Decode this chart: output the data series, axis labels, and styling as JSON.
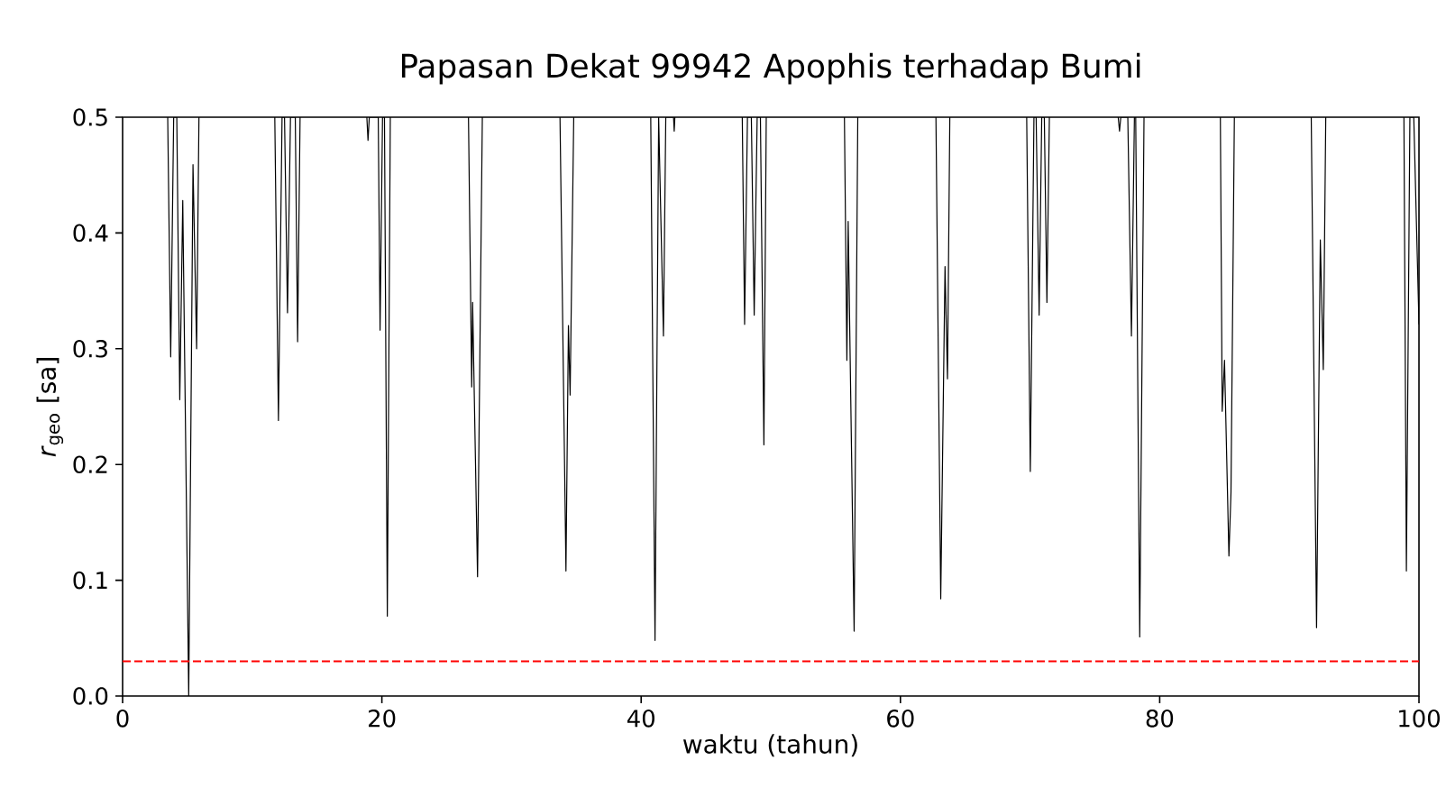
{
  "chart_data": {
    "type": "line",
    "title": "Papasan Dekat 99942 Apophis terhadap Bumi",
    "xlabel": "waktu (tahun)",
    "ylabel": "*r*$_{geo}$ [sa]",
    "xlim": [
      0,
      100
    ],
    "xticks": [
      0,
      20,
      40,
      60,
      80,
      100
    ],
    "ylim": [
      0,
      0.5
    ],
    "yticks": [
      {
        "value": 0,
        "label": "0.0"
      },
      {
        "value": 0.1,
        "label": "0.1"
      },
      {
        "value": 0.2,
        "label": "0.2"
      },
      {
        "value": 0.3,
        "label": "0.3"
      },
      {
        "value": 0.4,
        "label": "0.4"
      },
      {
        "value": 0.5,
        "label": "0.5"
      }
    ],
    "series": [
      {
        "color": "#000000",
        "line_style": "solid",
        "x": [
          3.48,
          3.71,
          3.94,
          4.18,
          4.41,
          4.64,
          5.1,
          5.43,
          5.71,
          5.89,
          6.5,
          11.74,
          12.02,
          12.3,
          12.49,
          12.72,
          12.95,
          13.32,
          13.5,
          13.69,
          15,
          18.84,
          18.93,
          19.03,
          19.72,
          19.86,
          20.05,
          20.2,
          20.42,
          20.65,
          23,
          26.68,
          26.93,
          27.0,
          27.38,
          27.75,
          30,
          33.74,
          34.2,
          34.39,
          34.52,
          34.8,
          37,
          40.74,
          41.07,
          41.35,
          41.72,
          41.9,
          42.5,
          42.55,
          42.6,
          45,
          47.8,
          47.98,
          48.2,
          48.5,
          48.72,
          48.95,
          49.2,
          49.47,
          49.65,
          52,
          55.68,
          55.87,
          55.97,
          56.43,
          56.71,
          60,
          62.74,
          63.11,
          63.44,
          63.63,
          63.81,
          66,
          69.74,
          70.02,
          70.3,
          70.47,
          70.7,
          70.9,
          71.1,
          71.3,
          71.49,
          74,
          76.8,
          76.9,
          77.0,
          77.54,
          77.82,
          78.05,
          78.15,
          78.46,
          78.79,
          82,
          84.68,
          84.82,
          85.0,
          85.34,
          85.5,
          85.76,
          88,
          91.69,
          92.1,
          92.39,
          92.62,
          92.81,
          95,
          98.84,
          99.03,
          99.3,
          99.6,
          100
        ],
        "values": [
          0.5,
          0.293,
          0.5,
          0.5,
          0.256,
          0.428,
          0.0,
          0.459,
          0.3,
          0.5,
          null,
          0.5,
          0.238,
          0.5,
          0.5,
          0.331,
          0.5,
          0.5,
          0.306,
          0.5,
          null,
          0.5,
          0.48,
          0.5,
          0.5,
          0.316,
          0.5,
          0.5,
          0.069,
          0.5,
          null,
          0.5,
          0.267,
          0.34,
          0.103,
          0.5,
          null,
          0.5,
          0.108,
          0.32,
          0.26,
          0.5,
          null,
          0.5,
          0.048,
          0.5,
          0.311,
          0.5,
          0.5,
          0.488,
          0.5,
          null,
          0.5,
          0.321,
          0.5,
          0.5,
          0.329,
          0.5,
          0.5,
          0.217,
          0.5,
          null,
          0.5,
          0.29,
          0.41,
          0.056,
          0.5,
          null,
          0.5,
          0.084,
          0.371,
          0.274,
          0.5,
          null,
          0.5,
          0.194,
          0.5,
          0.5,
          0.329,
          0.5,
          0.5,
          0.34,
          0.5,
          null,
          0.5,
          0.488,
          0.5,
          0.5,
          0.311,
          0.5,
          0.5,
          0.051,
          0.5,
          null,
          0.5,
          0.246,
          0.29,
          0.121,
          0.176,
          0.5,
          null,
          0.5,
          0.059,
          0.394,
          0.282,
          0.5,
          null,
          0.5,
          0.108,
          0.5,
          0.5,
          0.321
        ]
      }
    ],
    "ref_lines": [
      {
        "axis": "y",
        "value": 0.03,
        "color": "#ff0000",
        "line_style": "dashed"
      }
    ]
  }
}
